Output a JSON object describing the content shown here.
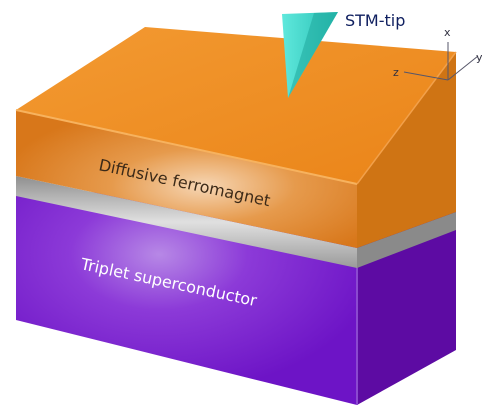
{
  "labels": {
    "tip": "STM-tip",
    "ferromagnet": "Diffusive ferromagnet",
    "superconductor": "Triplet superconductor"
  },
  "axes": {
    "x": "x",
    "y": "y",
    "z": "z"
  },
  "colors": {
    "background": "#ffffff",
    "ferromagnet_top": "#f08a1e",
    "ferromagnet_front": "#e07f1a",
    "ferromagnet_side": "#d47510",
    "interface": "#b5b5b5",
    "superconductor_front": "#7a1fcf",
    "superconductor_side": "#5a0a9e",
    "tip": "#40d8cc",
    "axis": "#555566",
    "label_text": "#3a2a1a",
    "sc_label_text": "#ffffff"
  }
}
